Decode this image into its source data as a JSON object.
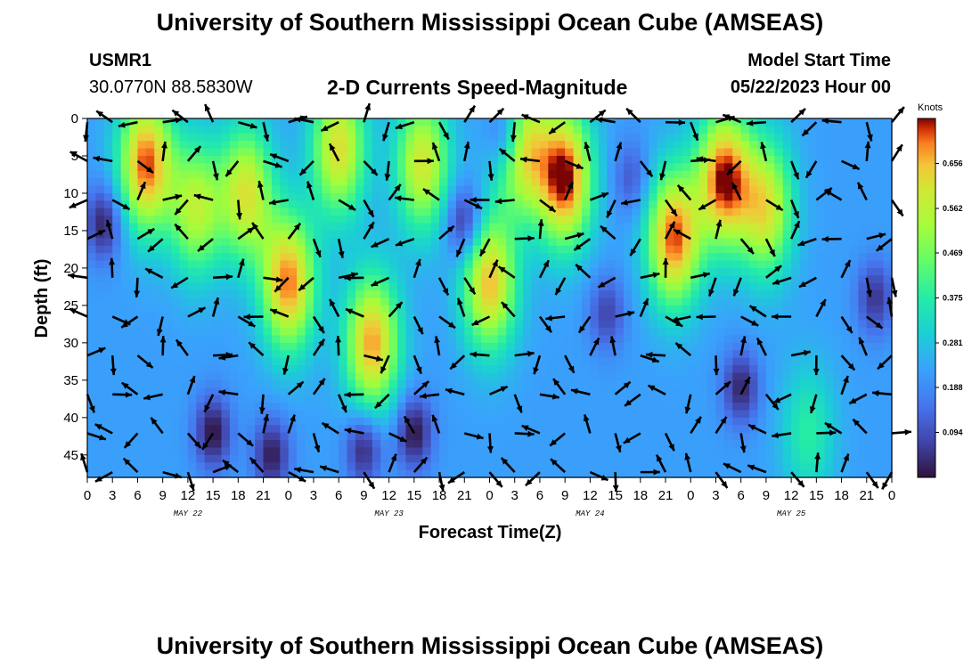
{
  "header": {
    "title": "University of Southern Mississippi Ocean Cube (AMSEAS)",
    "station": "USMR1",
    "coords": "30.0770N  88.5830W",
    "chart_title": "2-D Currents Speed-Magnitude",
    "model_label": "Model Start Time",
    "model_start": "05/22/2023 Hour 00",
    "footer_title": "University of Southern Mississippi Ocean Cube (AMSEAS)"
  },
  "colors": {
    "low": "#30123b",
    "mid_low": "#3e9bfe",
    "mid": "#a4fc3c",
    "mid_high": "#fb8022",
    "high": "#7a0403"
  },
  "chart_data": {
    "type": "heatmap",
    "title": "2-D Currents Speed-Magnitude",
    "xlabel": "Forecast Time(Z)",
    "ylabel": "Depth (ft)",
    "x_ticks": [
      "0",
      "3",
      "6",
      "9",
      "12",
      "15",
      "18",
      "21",
      "0",
      "3",
      "6",
      "9",
      "12",
      "15",
      "18",
      "21",
      "0",
      "3",
      "6",
      "9",
      "12",
      "15",
      "18",
      "21",
      "0",
      "3",
      "6",
      "9",
      "12",
      "15",
      "18",
      "21",
      "0"
    ],
    "x_range_hours": [
      0,
      96
    ],
    "day_labels": [
      {
        "label": "MAY 22",
        "hour": 12
      },
      {
        "label": "MAY 23",
        "hour": 36
      },
      {
        "label": "MAY 24",
        "hour": 60
      },
      {
        "label": "MAY 25",
        "hour": 84
      }
    ],
    "y_ticks": [
      "0",
      "5",
      "10",
      "15",
      "20",
      "25",
      "30",
      "35",
      "40",
      "45"
    ],
    "y_range_ft": [
      0,
      48
    ],
    "colorbar": {
      "label": "Knots",
      "ticks": [
        "0.656",
        "0.562",
        "0.469",
        "0.375",
        "0.281",
        "0.188",
        "0.094"
      ],
      "range": [
        0,
        0.75
      ]
    },
    "speed_maxima": [
      {
        "hour": 7,
        "depth": 6,
        "speed": 0.72
      },
      {
        "hour": 13,
        "depth": 12,
        "speed": 0.55
      },
      {
        "hour": 19,
        "depth": 10,
        "speed": 0.6
      },
      {
        "hour": 24,
        "depth": 22,
        "speed": 0.7
      },
      {
        "hour": 30,
        "depth": 4,
        "speed": 0.62
      },
      {
        "hour": 34,
        "depth": 30,
        "speed": 0.68
      },
      {
        "hour": 40,
        "depth": 6,
        "speed": 0.6
      },
      {
        "hour": 48,
        "depth": 22,
        "speed": 0.66
      },
      {
        "hour": 52,
        "depth": 4,
        "speed": 0.62
      },
      {
        "hour": 57,
        "depth": 8,
        "speed": 0.75
      },
      {
        "hour": 70,
        "depth": 16,
        "speed": 0.72
      },
      {
        "hour": 76,
        "depth": 8,
        "speed": 0.74
      },
      {
        "hour": 81,
        "depth": 12,
        "speed": 0.6
      },
      {
        "hour": 86,
        "depth": 42,
        "speed": 0.38
      }
    ],
    "speed_minima": [
      {
        "hour": 2,
        "depth": 14,
        "speed": 0.05
      },
      {
        "hour": 15,
        "depth": 42,
        "speed": 0.04
      },
      {
        "hour": 22,
        "depth": 45,
        "speed": 0.05
      },
      {
        "hour": 33,
        "depth": 44,
        "speed": 0.05
      },
      {
        "hour": 39,
        "depth": 42,
        "speed": 0.04
      },
      {
        "hour": 45,
        "depth": 14,
        "speed": 0.04
      },
      {
        "hour": 50,
        "depth": 2,
        "speed": 0.05
      },
      {
        "hour": 62,
        "depth": 26,
        "speed": 0.1
      },
      {
        "hour": 65,
        "depth": 8,
        "speed": 0.12
      },
      {
        "hour": 78,
        "depth": 36,
        "speed": 0.06
      },
      {
        "hour": 94,
        "depth": 24,
        "speed": 0.08
      }
    ]
  }
}
